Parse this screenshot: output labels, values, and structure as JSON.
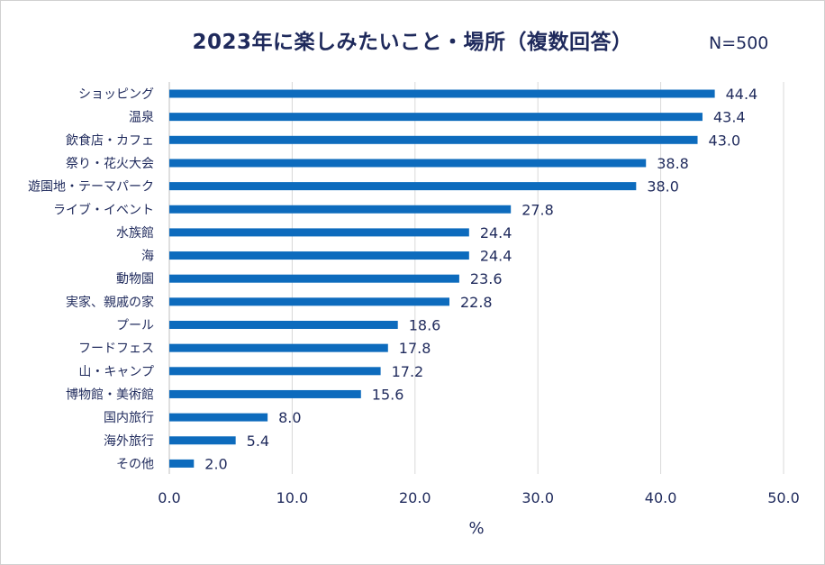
{
  "chart_data": {
    "type": "bar",
    "orientation": "horizontal",
    "title": "2023年に楽しみたいこと・場所（複数回答）",
    "sample_size": "N=500",
    "xlabel": "%",
    "xlim": [
      0,
      50
    ],
    "x_ticks": [
      "0.0",
      "10.0",
      "20.0",
      "30.0",
      "40.0",
      "50.0"
    ],
    "grid": "vertical",
    "bar_color": "#0d6bbd",
    "categories": [
      "ショッピング",
      "温泉",
      "飲食店・カフェ",
      "祭り・花火大会",
      "遊園地・テーマパーク",
      "ライブ・イベント",
      "水族館",
      "海",
      "動物園",
      "実家、親戚の家",
      "プール",
      "フードフェス",
      "山・キャンプ",
      "博物館・美術館",
      "国内旅行",
      "海外旅行",
      "その他"
    ],
    "values": [
      44.4,
      43.4,
      43.0,
      38.8,
      38.0,
      27.8,
      24.4,
      24.4,
      23.6,
      22.8,
      18.6,
      17.8,
      17.2,
      15.6,
      8.0,
      5.4,
      2.0
    ],
    "data_labels": [
      "44.4",
      "43.4",
      "43.0",
      "38.8",
      "38.0",
      "27.8",
      "24.4",
      "24.4",
      "23.6",
      "22.8",
      "18.6",
      "17.8",
      "17.2",
      "15.6",
      "8.0",
      "5.4",
      "2.0"
    ]
  }
}
